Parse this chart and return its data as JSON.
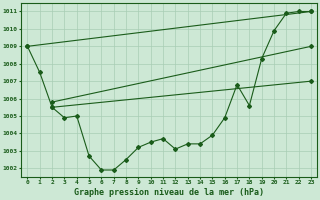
{
  "title": "Graphe pression niveau de la mer (hPa)",
  "background_color": "#cde8d5",
  "grid_color": "#a8cdb5",
  "line_color": "#1a5c1a",
  "xlim": [
    -0.5,
    23.5
  ],
  "ylim": [
    1001.5,
    1011.5
  ],
  "yticks": [
    1002,
    1003,
    1004,
    1005,
    1006,
    1007,
    1008,
    1009,
    1010,
    1011
  ],
  "xticks": [
    0,
    1,
    2,
    3,
    4,
    5,
    6,
    7,
    8,
    9,
    10,
    11,
    12,
    13,
    14,
    15,
    16,
    17,
    18,
    19,
    20,
    21,
    22,
    23
  ],
  "series": [
    {
      "x": [
        0,
        1,
        2,
        3,
        4,
        5,
        6,
        7,
        8,
        9,
        10,
        11,
        12,
        13,
        14,
        15,
        16,
        17,
        18,
        19,
        20,
        21,
        22,
        23
      ],
      "y": [
        1009.0,
        1007.5,
        1005.5,
        1004.9,
        1005.0,
        1002.7,
        1001.9,
        1001.9,
        1002.5,
        1003.2,
        1003.5,
        1003.7,
        1003.1,
        1003.4,
        1003.4,
        1003.9,
        1004.9,
        1006.8,
        1005.6,
        1008.3,
        1009.9,
        1010.9,
        1011.0,
        1011.0
      ]
    },
    {
      "x": [
        0,
        23
      ],
      "y": [
        1009.0,
        1011.0
      ]
    },
    {
      "x": [
        2,
        23
      ],
      "y": [
        1005.8,
        1009.0
      ]
    },
    {
      "x": [
        2,
        23
      ],
      "y": [
        1005.5,
        1007.0
      ]
    }
  ]
}
